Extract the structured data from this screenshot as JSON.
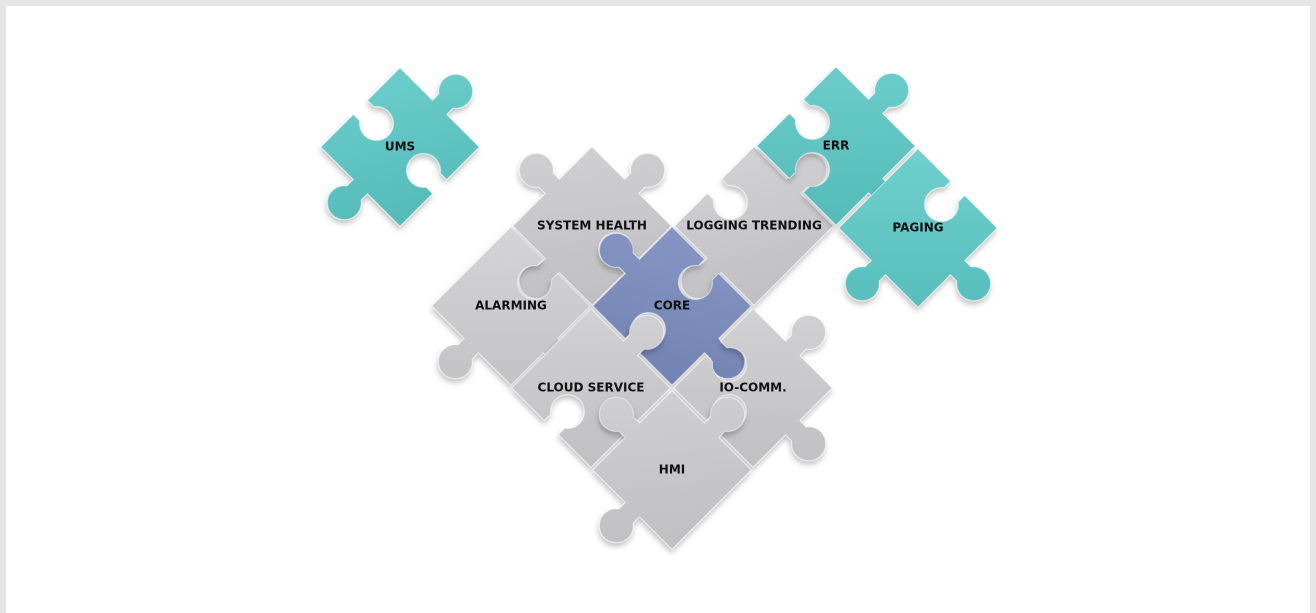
{
  "nodes": [
    {
      "label": "UMS"
    },
    {
      "label": "SYSTEM HEALTH"
    },
    {
      "label": "LOGGING TRENDING"
    },
    {
      "label": "ERR"
    },
    {
      "label": "PAGING"
    },
    {
      "label": "ALARMING"
    },
    {
      "label": "CORE"
    },
    {
      "label": "CLOUD SERVICE"
    },
    {
      "label": "IO-COMM."
    },
    {
      "label": "HMI"
    }
  ]
}
